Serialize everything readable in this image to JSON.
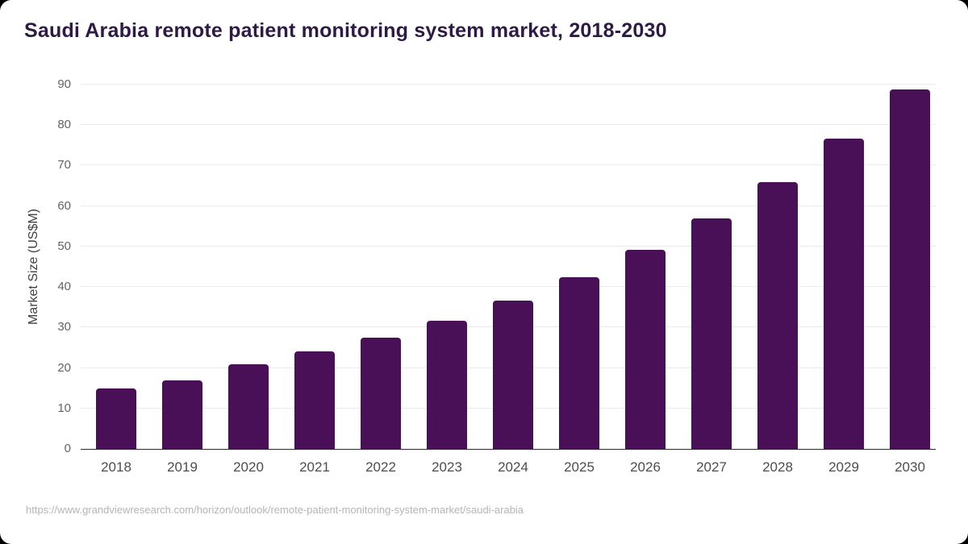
{
  "page": {
    "title": "Saudi Arabia remote patient monitoring system market, 2018-2030",
    "source_url": "https://www.grandviewresearch.com/horizon/outlook/remote-patient-monitoring-system-market/saudi-arabia"
  },
  "chart_data": {
    "type": "bar",
    "title": "Saudi Arabia remote patient monitoring system market, 2018-2030",
    "categories": [
      "2018",
      "2019",
      "2020",
      "2021",
      "2022",
      "2023",
      "2024",
      "2025",
      "2026",
      "2027",
      "2028",
      "2029",
      "2030"
    ],
    "values": [
      15,
      17,
      21,
      24,
      27.5,
      31.7,
      36.7,
      42.5,
      49.2,
      57,
      66,
      76.7,
      88.8
    ],
    "xlabel": "",
    "ylabel": "Market Size (US$M)",
    "ylim": [
      0,
      90
    ],
    "ytick_step": 10,
    "grid": true,
    "legend": null,
    "bar_color": "#491057"
  },
  "colors": {
    "title": "#2e1a47",
    "bar": "#491057",
    "gridline": "#ebebeb",
    "axis_line": "#2b2b2b",
    "y_tick_label": "#636363",
    "x_tick_label": "#4d4d4d",
    "source": "#b5b5b5",
    "background": "#ffffff"
  }
}
